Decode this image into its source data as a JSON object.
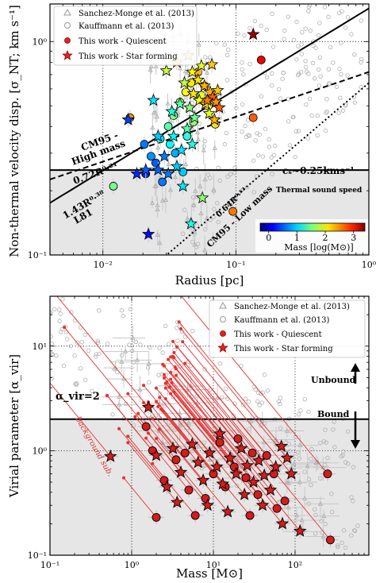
{
  "chart_data": [
    {
      "type": "scatter",
      "panel": "top",
      "xlabel": "Radius [pc]",
      "ylabel": "Non-thermal velocity disp. [σ_NT; km s⁻¹]",
      "xscale": "log",
      "yscale": "log",
      "xlim": [
        0.004,
        1.0
      ],
      "ylim": [
        0.1,
        1.5
      ],
      "x_ticks": [
        {
          "v": 0.01,
          "label": "10⁻²"
        },
        {
          "v": 0.1,
          "label": "10⁻¹"
        },
        {
          "v": 1.0,
          "label": "10⁰"
        }
      ],
      "y_ticks": [
        {
          "v": 0.1,
          "label": "10⁻¹"
        },
        {
          "v": 1.0,
          "label": "10⁰"
        }
      ],
      "shaded_below_y": 0.25,
      "legend": [
        {
          "label": "Sanchez-Monge et al. (2013)",
          "marker": "triangle-open"
        },
        {
          "label": "Kauffmann et al. (2013)",
          "marker": "circle-open"
        },
        {
          "label": "This work - Quiescent",
          "marker": "circle-red"
        },
        {
          "label": "This work - Star forming",
          "marker": "star-red"
        }
      ],
      "annotations": {
        "cm95_high": "CM95 -",
        "cm95_high2": "High mass",
        "cm95_high_rel": "0.72R⁰·²¹",
        "l81_rel": "1.43R⁰·³⁸",
        "l81": "L81",
        "cs": "cₛ~0.25kms⁻¹",
        "thermal": "Thermal sound speed",
        "cm95_low_rel": "0.64R⁰·⁵³",
        "cm95_low": "CM95 - Low mass"
      },
      "colorbar": {
        "label": "Mass [log(M⊙)]",
        "ticks": [
          {
            "v": 0,
            "label": "0"
          },
          {
            "v": 1,
            "label": "1"
          },
          {
            "v": 2,
            "label": "2"
          },
          {
            "v": 3,
            "label": "3"
          }
        ],
        "range": [
          -0.3,
          3.4
        ]
      },
      "lines": [
        {
          "name": "L81",
          "style": "solid",
          "coef": 1.43,
          "exp": 0.38
        },
        {
          "name": "CM95 high",
          "style": "dashed",
          "coef": 0.72,
          "exp": 0.21
        },
        {
          "name": "CM95 low",
          "style": "dotted",
          "coef": 0.64,
          "exp": 0.53
        }
      ],
      "hline": {
        "y": 0.25,
        "style": "solid"
      },
      "quiescent": [
        [
          0.016,
          0.44,
          2.4
        ],
        [
          0.135,
          0.44,
          2.6
        ],
        [
          0.155,
          0.82,
          3.0
        ],
        [
          0.012,
          0.21,
          1.5
        ],
        [
          0.095,
          0.16,
          2.5
        ],
        [
          0.0205,
          0.33,
          0.6
        ],
        [
          0.023,
          0.29,
          0.7
        ],
        [
          0.027,
          0.35,
          1.0
        ],
        [
          0.031,
          0.4,
          1.4
        ],
        [
          0.034,
          0.45,
          1.5
        ],
        [
          0.038,
          0.52,
          1.7
        ],
        [
          0.042,
          0.58,
          2.0
        ],
        [
          0.046,
          0.64,
          2.1
        ],
        [
          0.052,
          0.72,
          2.3
        ],
        [
          0.058,
          0.62,
          2.2
        ],
        [
          0.028,
          0.22,
          0.6
        ],
        [
          0.025,
          0.27,
          0.5
        ],
        [
          0.035,
          0.3,
          0.8
        ],
        [
          0.043,
          0.36,
          1.2
        ],
        [
          0.048,
          0.42,
          1.6
        ],
        [
          0.062,
          0.5,
          2.0
        ],
        [
          0.07,
          0.41,
          2.1
        ],
        [
          0.04,
          0.245,
          0.9
        ],
        [
          0.021,
          0.24,
          0.3
        ],
        [
          0.032,
          0.33,
          1.1
        ],
        [
          0.055,
          0.56,
          1.9
        ]
      ],
      "starforming": [
        [
          0.135,
          1.08,
          3.3
        ],
        [
          0.0155,
          0.43,
          0.4
        ],
        [
          0.022,
          0.125,
          0.2
        ],
        [
          0.018,
          0.24,
          0.3
        ],
        [
          0.021,
          0.25,
          0.5
        ],
        [
          0.026,
          0.25,
          0.5
        ],
        [
          0.031,
          0.24,
          0.6
        ],
        [
          0.036,
          0.26,
          0.9
        ],
        [
          0.029,
          0.29,
          0.6
        ],
        [
          0.04,
          0.21,
          1.0
        ],
        [
          0.046,
          0.14,
          1.2
        ],
        [
          0.056,
          0.185,
          1.6
        ],
        [
          0.036,
          0.8,
          2.2
        ],
        [
          0.03,
          0.73,
          1.8
        ],
        [
          0.041,
          0.64,
          1.8
        ],
        [
          0.047,
          0.72,
          2.0
        ],
        [
          0.052,
          0.66,
          2.1
        ],
        [
          0.058,
          0.62,
          2.3
        ],
        [
          0.064,
          0.58,
          2.3
        ],
        [
          0.067,
          0.55,
          2.6
        ],
        [
          0.071,
          0.52,
          2.4
        ],
        [
          0.073,
          0.59,
          2.2
        ],
        [
          0.048,
          0.57,
          2.1
        ],
        [
          0.053,
          0.53,
          2.0
        ],
        [
          0.059,
          0.51,
          2.2
        ],
        [
          0.055,
          0.77,
          1.9
        ],
        [
          0.044,
          0.86,
          2.3
        ],
        [
          0.066,
          0.78,
          2.2
        ],
        [
          0.024,
          0.53,
          1.0
        ],
        [
          0.034,
          0.36,
          1.1
        ],
        [
          0.043,
          0.39,
          1.4
        ],
        [
          0.049,
          0.44,
          1.5
        ],
        [
          0.063,
          0.46,
          1.9
        ],
        [
          0.069,
          0.43,
          2.3
        ],
        [
          0.039,
          0.31,
          1.0
        ],
        [
          0.047,
          0.33,
          1.2
        ],
        [
          0.026,
          0.36,
          0.9
        ],
        [
          0.033,
          0.47,
          1.2
        ],
        [
          0.038,
          0.51,
          1.4
        ],
        [
          0.045,
          0.49,
          1.6
        ],
        [
          0.061,
          0.53,
          2.5
        ],
        [
          0.075,
          0.49,
          2.6
        ]
      ]
    },
    {
      "type": "scatter",
      "panel": "bottom",
      "xlabel": "Mass [M⊙]",
      "ylabel": "Virial parameter [α_vir]",
      "xscale": "log",
      "yscale": "log",
      "xlim": [
        0.1,
        800
      ],
      "ylim": [
        0.1,
        30
      ],
      "x_ticks": [
        {
          "v": 0.1,
          "label": "10⁻¹"
        },
        {
          "v": 1,
          "label": "10⁰"
        },
        {
          "v": 10,
          "label": "10¹"
        },
        {
          "v": 100,
          "label": "10²"
        }
      ],
      "y_ticks": [
        {
          "v": 0.1,
          "label": "10⁻¹"
        },
        {
          "v": 1,
          "label": "10⁰"
        },
        {
          "v": 10,
          "label": "10¹"
        }
      ],
      "shaded_below_y": 2,
      "hline": {
        "y": 2,
        "label": "α_vir=2"
      },
      "legend": [
        {
          "label": "Sanchez-Monge et al. (2013)",
          "marker": "triangle-open"
        },
        {
          "label": "Kauffmann et al. (2013)",
          "marker": "circle-open"
        },
        {
          "label": "This work - Quiescent",
          "marker": "circle-red"
        },
        {
          "label": "This work - Star forming",
          "marker": "star-red"
        }
      ],
      "annotations": {
        "unbound": "Unbound",
        "bound": "Bound",
        "bg": "background sub."
      },
      "quiescent": [
        [
          250,
          0.6,
          3.0,
          0.5
        ],
        [
          270,
          0.14,
          4.5,
          0.4
        ],
        [
          1.5,
          1.7,
          0.15,
          0.6
        ],
        [
          1.8,
          1.0,
          0.5,
          0.5
        ],
        [
          2.0,
          0.23,
          0.8,
          0.5
        ],
        [
          2.5,
          0.52,
          0.9,
          0.5
        ],
        [
          3.5,
          0.82,
          1.2,
          0.5
        ],
        [
          5.0,
          0.42,
          1.5,
          0.5
        ],
        [
          6.0,
          0.24,
          1.8,
          0.5
        ],
        [
          8.0,
          0.35,
          2.0,
          0.5
        ],
        [
          10,
          0.6,
          2.1,
          0.5
        ],
        [
          14,
          0.45,
          2.4,
          0.5
        ],
        [
          18,
          0.7,
          2.6,
          0.5
        ],
        [
          25,
          0.55,
          2.7,
          0.5
        ],
        [
          35,
          0.38,
          2.9,
          0.5
        ],
        [
          45,
          0.9,
          3.2,
          0.5
        ],
        [
          55,
          0.6,
          3.3,
          0.5
        ],
        [
          75,
          0.33,
          3.5,
          0.5
        ],
        [
          12,
          1.2,
          2.5,
          0.5
        ],
        [
          20,
          1.3,
          3.0,
          0.5
        ],
        [
          30,
          0.95,
          3.2,
          0.5
        ],
        [
          60,
          0.28,
          3.0,
          0.5
        ],
        [
          28,
          0.24,
          2.0,
          0.5
        ],
        [
          4.5,
          0.95,
          1.4,
          0.5
        ]
      ],
      "starforming": [
        [
          1.6,
          2.6,
          0.1,
          0.6
        ],
        [
          0.55,
          0.88,
          0.05,
          0.6
        ],
        [
          115,
          0.17,
          2.5,
          0.5
        ],
        [
          2.0,
          0.9,
          0.5,
          0.5
        ],
        [
          2.7,
          0.45,
          0.7,
          0.5
        ],
        [
          3.2,
          1.05,
          0.9,
          0.5
        ],
        [
          4.0,
          0.62,
          1.1,
          0.5
        ],
        [
          5.5,
          1.15,
          1.4,
          0.5
        ],
        [
          6.5,
          0.77,
          1.6,
          0.5
        ],
        [
          7.5,
          0.52,
          1.8,
          0.5
        ],
        [
          9.0,
          0.95,
          2.0,
          0.5
        ],
        [
          11,
          0.7,
          2.2,
          0.5
        ],
        [
          13,
          0.48,
          2.3,
          0.5
        ],
        [
          16,
          0.85,
          2.5,
          0.5
        ],
        [
          19,
          0.6,
          2.6,
          0.5
        ],
        [
          22,
          1.05,
          2.8,
          0.5
        ],
        [
          26,
          0.72,
          3.0,
          0.5
        ],
        [
          31,
          0.5,
          3.1,
          0.5
        ],
        [
          36,
          0.8,
          3.3,
          0.5
        ],
        [
          42,
          0.58,
          3.4,
          0.5
        ],
        [
          50,
          0.42,
          3.5,
          0.5
        ],
        [
          58,
          0.7,
          3.6,
          0.5
        ],
        [
          68,
          1.1,
          3.8,
          0.5
        ],
        [
          80,
          0.85,
          4.0,
          0.5
        ],
        [
          90,
          0.6,
          4.2,
          0.5
        ],
        [
          3.6,
          0.32,
          0.9,
          0.5
        ],
        [
          8.5,
          0.3,
          1.6,
          0.5
        ],
        [
          15,
          0.26,
          2.2,
          0.5
        ],
        [
          24,
          0.38,
          2.6,
          0.5
        ],
        [
          40,
          0.3,
          3.0,
          0.5
        ],
        [
          70,
          0.2,
          3.3,
          0.5
        ],
        [
          12,
          1.45,
          2.4,
          0.5
        ]
      ]
    }
  ]
}
